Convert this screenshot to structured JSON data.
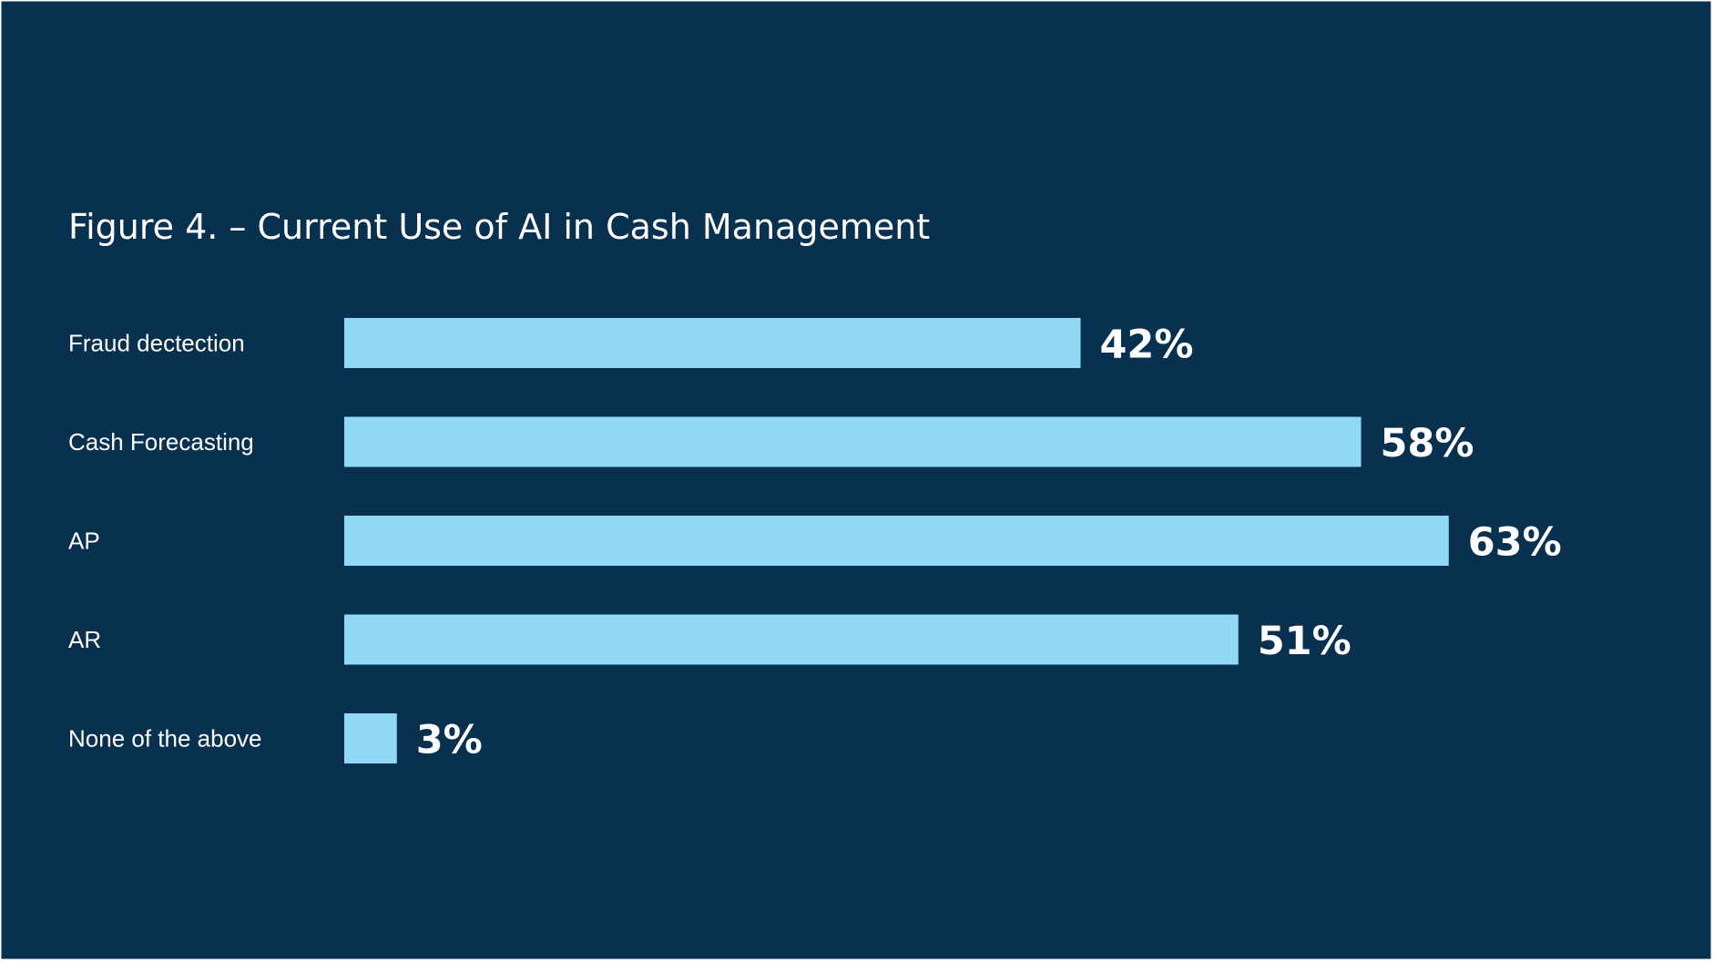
{
  "colors": {
    "background": "#08304F",
    "bar": "#91D8F7",
    "text": "#FFFFFF",
    "border": "#FFFFFF"
  },
  "chart_data": {
    "type": "bar",
    "orientation": "horizontal",
    "title": "Figure 4. – Current Use of AI in Cash Management",
    "categories": [
      "Fraud dectection",
      "Cash Forecasting",
      "AP",
      "AR",
      "None of the above"
    ],
    "values": [
      42,
      58,
      63,
      51,
      3
    ],
    "value_labels": [
      "42%",
      "58%",
      "63%",
      "51%",
      "3%"
    ],
    "unit": "%",
    "xlim": [
      0,
      100
    ],
    "xlabel": "",
    "ylabel": "",
    "grid": false,
    "legend": "none"
  }
}
